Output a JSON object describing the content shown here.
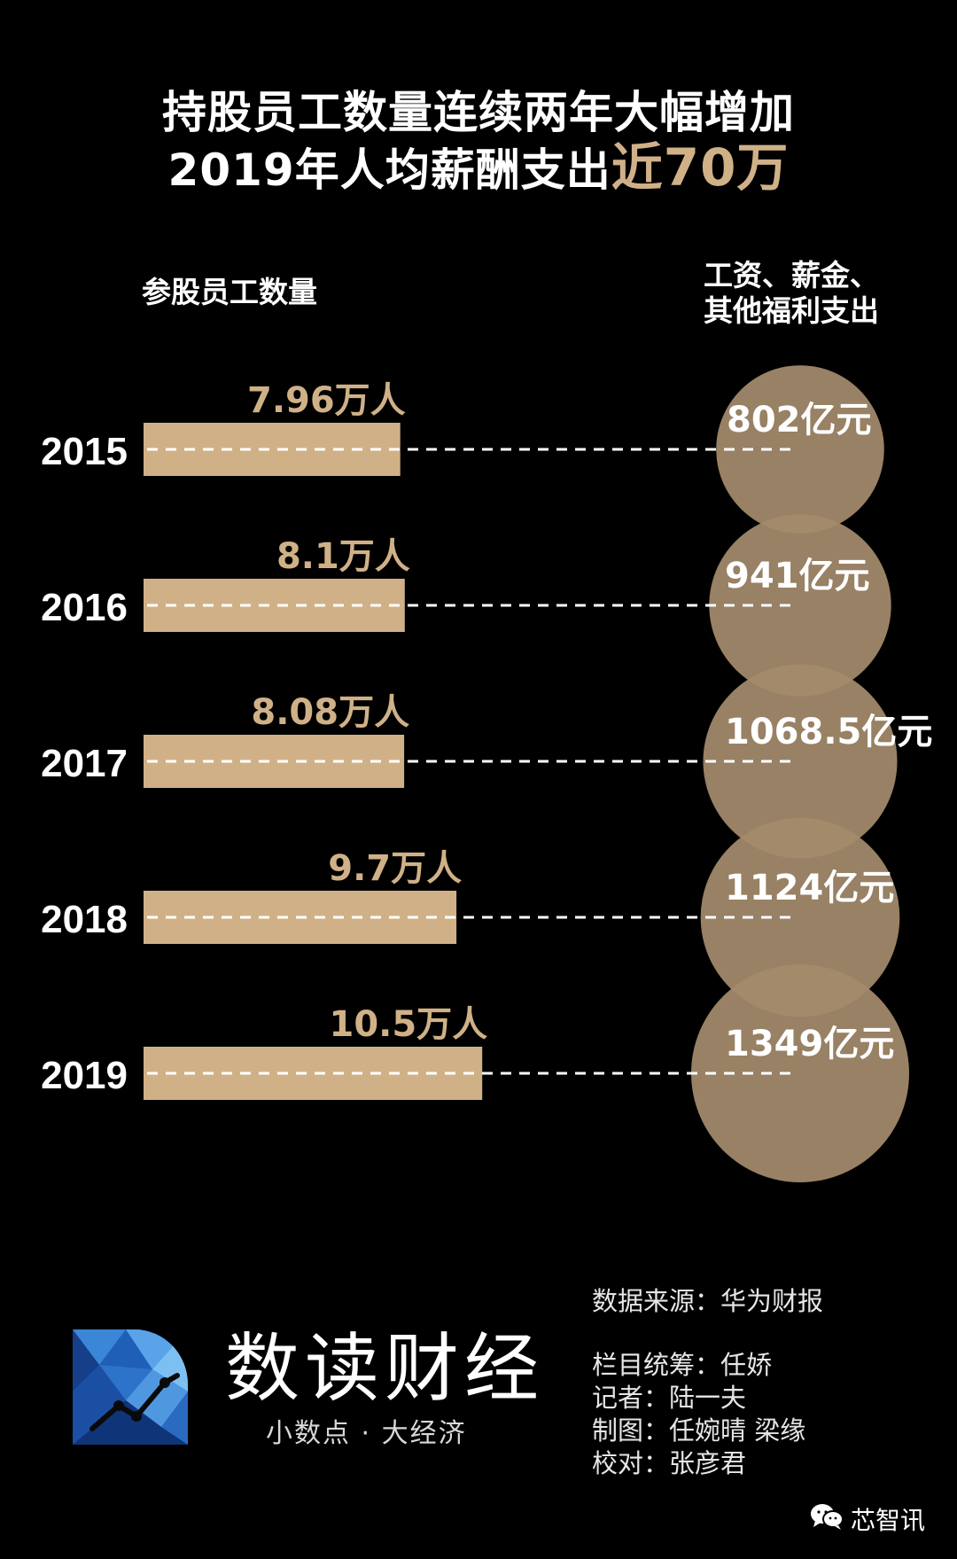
{
  "title": {
    "line1": "持股员工数量连续两年大幅增加",
    "line2_prefix": "2019年人均薪酬支出",
    "line2_highlight": "近70万"
  },
  "left_header": "参股员工数量",
  "right_header": {
    "line1": "工资、薪金、",
    "line2": "其他福利支出"
  },
  "colors": {
    "accent": "#d0b187",
    "bubble": "#a48b6c",
    "background": "#000000"
  },
  "chart_data": {
    "type": "bar",
    "categories": [
      "2015",
      "2016",
      "2017",
      "2018",
      "2019"
    ],
    "series": [
      {
        "values": [
          7.96,
          8.1,
          8.08,
          9.7,
          10.5
        ],
        "labels": [
          "7.96万人",
          "8.1万人",
          "8.08万人",
          "9.7万人",
          "10.5万人"
        ]
      },
      {
        "values": [
          802,
          941,
          1068.5,
          1124,
          1349
        ],
        "labels": [
          "802亿元",
          "941亿元",
          "1068.5亿元",
          "1124亿元",
          "1349亿元"
        ]
      }
    ]
  },
  "footer": {
    "source": "数据来源：华为财报",
    "credits": [
      "栏目统筹：任娇",
      "记者：陆一夫",
      "制图：任婉晴 梁缘",
      "校对：张彦君"
    ]
  },
  "brand": {
    "name": "数读财经",
    "slogan": "小数点 · 大经济",
    "logo_icon": "polygon-logo-icon"
  },
  "wechat": {
    "icon": "wechat-icon",
    "label": "芯智讯"
  }
}
